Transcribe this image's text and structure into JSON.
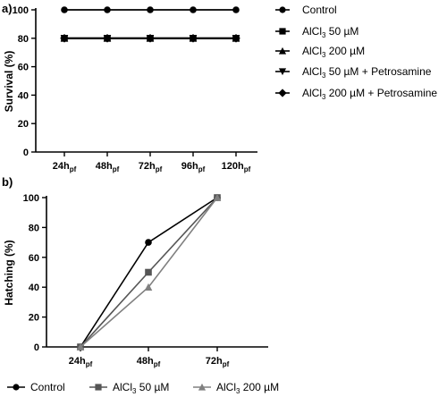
{
  "chart_data": [
    {
      "type": "line",
      "panel_label": "a)",
      "categories": [
        "24h",
        "48h",
        "72h",
        "96h",
        "120h"
      ],
      "category_subscript": "pf",
      "ylabel": "Survival (%)",
      "xlabel": "",
      "ylim": [
        0,
        100
      ],
      "yticks": [
        "0",
        "20",
        "40",
        "60",
        "80",
        "100"
      ],
      "grid": false,
      "legend_position": "right",
      "series": [
        {
          "name": "Control",
          "legend": {
            "pre": "Control"
          },
          "marker": "circle",
          "color": "#000000",
          "values": [
            100,
            100,
            100,
            100,
            100
          ]
        },
        {
          "name": "AlCl3 50 µM",
          "legend": {
            "pre": "AlCl",
            "sub": "3",
            "post": " 50 µM"
          },
          "marker": "square",
          "color": "#000000",
          "values": [
            80,
            80,
            80,
            80,
            80
          ]
        },
        {
          "name": "AlCl3 200 µM",
          "legend": {
            "pre": "AlCl",
            "sub": "3",
            "post": " 200 µM"
          },
          "marker": "triangle-up",
          "color": "#000000",
          "values": [
            80,
            80,
            80,
            80,
            80
          ]
        },
        {
          "name": "AlCl3 50 µM + Petrosamine",
          "legend": {
            "pre": "AlCl",
            "sub": "3",
            "post": " 50 µM + Petrosamine"
          },
          "marker": "triangle-down",
          "color": "#000000",
          "values": [
            80,
            80,
            80,
            80,
            80
          ]
        },
        {
          "name": "AlCl3 200 µM + Petrosamine",
          "legend": {
            "pre": "AlCl",
            "sub": "3",
            "post": " 200 µM + Petrosamine"
          },
          "marker": "diamond",
          "color": "#000000",
          "values": [
            80,
            80,
            80,
            80,
            80
          ]
        }
      ]
    },
    {
      "type": "line",
      "panel_label": "b)",
      "categories": [
        "24h",
        "48h",
        "72h"
      ],
      "category_subscript": "pf",
      "ylabel": "Hatching (%)",
      "xlabel": "",
      "ylim": [
        0,
        100
      ],
      "yticks": [
        "0",
        "20",
        "40",
        "60",
        "80",
        "100"
      ],
      "grid": false,
      "legend_position": "bottom",
      "series": [
        {
          "name": "Control",
          "legend": {
            "pre": "Control"
          },
          "marker": "circle",
          "color": "#000000",
          "values": [
            0,
            70,
            100
          ]
        },
        {
          "name": "AlCl3 50 µM",
          "legend": {
            "pre": "AlCl",
            "sub": "3",
            "post": " 50 µM"
          },
          "marker": "square",
          "color": "#555555",
          "values": [
            0,
            50,
            100
          ]
        },
        {
          "name": "AlCl3 200 µM",
          "legend": {
            "pre": "AlCl",
            "sub": "3",
            "post": " 200 µM"
          },
          "marker": "triangle-up",
          "color": "#808080",
          "values": [
            0,
            40,
            100
          ]
        }
      ]
    }
  ]
}
